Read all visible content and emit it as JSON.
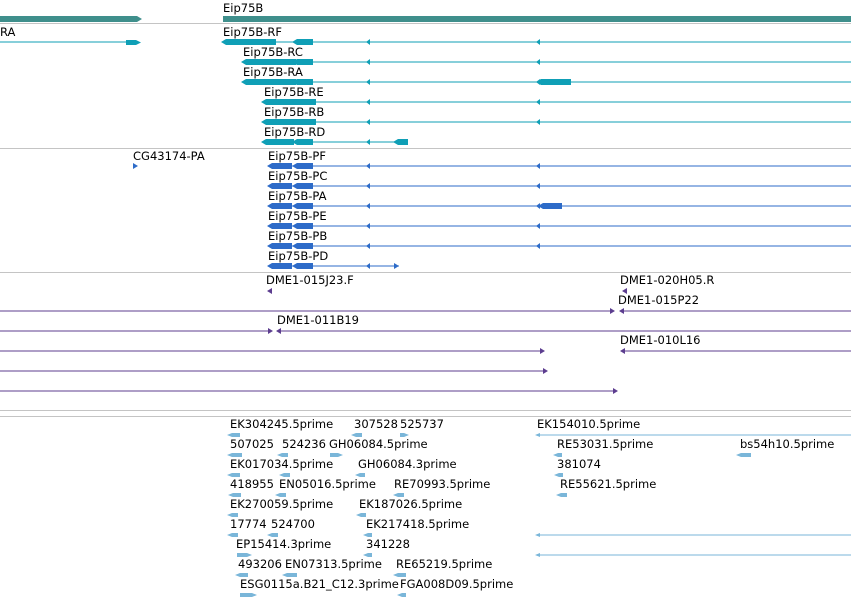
{
  "colors": {
    "gene_teal": "#3f8f8c",
    "transcript_teal": "#0f9fb6",
    "cds_blue": "#2d6bc8",
    "clone_purple": "#5c3d8f",
    "est_lightblue": "#7ab6d9",
    "divider_gray": "#c4c4c4"
  },
  "gene_track": {
    "gene_label": "Eip75B",
    "transcripts": [
      {
        "label": "RA"
      },
      {
        "label": "Eip75B-RF"
      },
      {
        "label": "Eip75B-RC"
      },
      {
        "label": "Eip75B-RA"
      },
      {
        "label": "Eip75B-RE"
      },
      {
        "label": "Eip75B-RB"
      },
      {
        "label": "Eip75B-RD"
      }
    ]
  },
  "protein_track": {
    "items": [
      {
        "label": "CG43174-PA"
      },
      {
        "label": "Eip75B-PF"
      },
      {
        "label": "Eip75B-PC"
      },
      {
        "label": "Eip75B-PA"
      },
      {
        "label": "Eip75B-PE"
      },
      {
        "label": "Eip75B-PB"
      },
      {
        "label": "Eip75B-PD"
      }
    ]
  },
  "clone_track": {
    "items": [
      {
        "label": "DME1-015J23.F"
      },
      {
        "label": "DME1-020H05.R"
      },
      {
        "label": "DME1-015P22"
      },
      {
        "label": "DME1-011B19"
      },
      {
        "label": "DME1-010L16"
      }
    ]
  },
  "est_track": {
    "items": [
      {
        "label": "EK304245.5prime"
      },
      {
        "label": "307528"
      },
      {
        "label": "525737"
      },
      {
        "label": "EK154010.5prime"
      },
      {
        "label": "507025"
      },
      {
        "label": "524236"
      },
      {
        "label": "GH06084.5prime"
      },
      {
        "label": "RE53031.5prime"
      },
      {
        "label": "bs54h10.5prime"
      },
      {
        "label": "EK017034.5prime"
      },
      {
        "label": "GH06084.3prime"
      },
      {
        "label": "381074"
      },
      {
        "label": "418955"
      },
      {
        "label": "EN05016.5prime"
      },
      {
        "label": "RE70993.5prime"
      },
      {
        "label": "RE55621.5prime"
      },
      {
        "label": "EK270059.5prime"
      },
      {
        "label": "EK187026.5prime"
      },
      {
        "label": "17774"
      },
      {
        "label": "524700"
      },
      {
        "label": "EK217418.5prime"
      },
      {
        "label": "EP15414.3prime"
      },
      {
        "label": "341228"
      },
      {
        "label": "493206"
      },
      {
        "label": "EN07313.5prime"
      },
      {
        "label": "ESG0115a.B21_C12.3prime"
      },
      {
        "label": "RE65219.5prime"
      },
      {
        "label": "FGA008D09.5prime"
      }
    ]
  }
}
